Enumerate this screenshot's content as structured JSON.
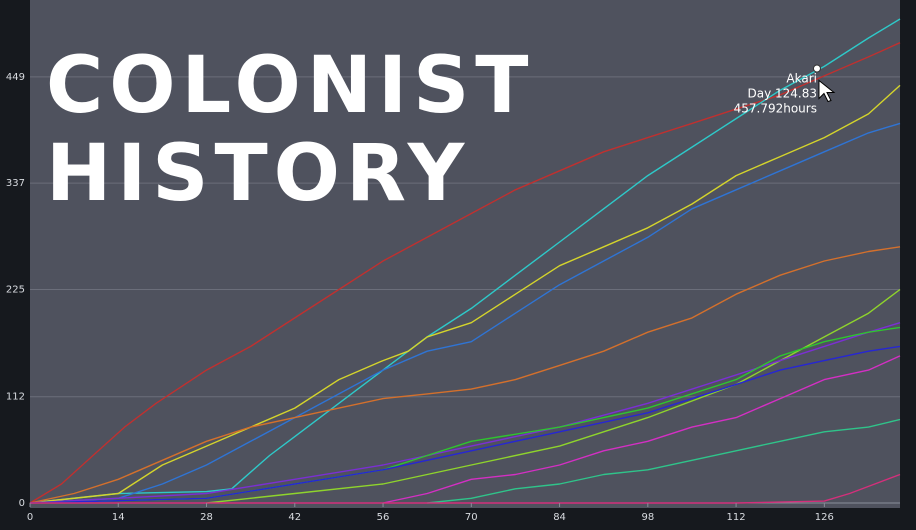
{
  "chart_data": {
    "type": "line",
    "title": [
      "COLONIST",
      "HISTORY"
    ],
    "xlabel": "",
    "ylabel": "",
    "x_ticks": [
      0,
      14,
      28,
      42,
      56,
      70,
      84,
      98,
      112,
      126
    ],
    "y_ticks": [
      0,
      112,
      225,
      337,
      449
    ],
    "xlim": [
      0,
      138
    ],
    "ylim": [
      0,
      530
    ],
    "grid": true,
    "series": [
      {
        "name": "red",
        "color": "#c0302f",
        "points": [
          [
            0,
            0
          ],
          [
            5,
            20
          ],
          [
            10,
            50
          ],
          [
            15,
            80
          ],
          [
            20,
            105
          ],
          [
            28,
            140
          ],
          [
            35,
            165
          ],
          [
            42,
            195
          ],
          [
            49,
            225
          ],
          [
            56,
            255
          ],
          [
            63,
            280
          ],
          [
            70,
            305
          ],
          [
            77,
            330
          ],
          [
            84,
            350
          ],
          [
            91,
            370
          ],
          [
            98,
            385
          ],
          [
            105,
            400
          ],
          [
            112,
            415
          ],
          [
            119,
            430
          ],
          [
            126,
            450
          ],
          [
            133,
            470
          ],
          [
            138,
            485
          ]
        ]
      },
      {
        "name": "cyan",
        "color": "#2ec9c9",
        "points": [
          [
            0,
            0
          ],
          [
            14,
            10
          ],
          [
            28,
            12
          ],
          [
            32,
            15
          ],
          [
            38,
            50
          ],
          [
            42,
            70
          ],
          [
            49,
            105
          ],
          [
            56,
            140
          ],
          [
            63,
            175
          ],
          [
            70,
            205
          ],
          [
            77,
            240
          ],
          [
            84,
            275
          ],
          [
            91,
            310
          ],
          [
            98,
            345
          ],
          [
            105,
            375
          ],
          [
            112,
            405
          ],
          [
            119,
            435
          ],
          [
            126,
            460
          ],
          [
            133,
            490
          ],
          [
            138,
            510
          ]
        ]
      },
      {
        "name": "yellow",
        "color": "#d4d42c",
        "points": [
          [
            0,
            0
          ],
          [
            14,
            10
          ],
          [
            21,
            40
          ],
          [
            28,
            60
          ],
          [
            35,
            80
          ],
          [
            42,
            100
          ],
          [
            49,
            130
          ],
          [
            56,
            150
          ],
          [
            60,
            160
          ],
          [
            63,
            175
          ],
          [
            70,
            190
          ],
          [
            77,
            220
          ],
          [
            84,
            250
          ],
          [
            91,
            270
          ],
          [
            98,
            290
          ],
          [
            105,
            315
          ],
          [
            112,
            345
          ],
          [
            119,
            365
          ],
          [
            126,
            385
          ],
          [
            133,
            410
          ],
          [
            138,
            440
          ]
        ]
      },
      {
        "name": "blue",
        "color": "#2f74d4",
        "points": [
          [
            0,
            0
          ],
          [
            14,
            5
          ],
          [
            21,
            20
          ],
          [
            28,
            40
          ],
          [
            35,
            65
          ],
          [
            42,
            90
          ],
          [
            49,
            115
          ],
          [
            56,
            140
          ],
          [
            63,
            160
          ],
          [
            70,
            170
          ],
          [
            77,
            200
          ],
          [
            84,
            230
          ],
          [
            91,
            255
          ],
          [
            98,
            280
          ],
          [
            105,
            310
          ],
          [
            112,
            330
          ],
          [
            119,
            350
          ],
          [
            126,
            370
          ],
          [
            133,
            390
          ],
          [
            138,
            400
          ]
        ]
      },
      {
        "name": "orange",
        "color": "#d4702c",
        "points": [
          [
            0,
            0
          ],
          [
            7,
            10
          ],
          [
            14,
            25
          ],
          [
            21,
            45
          ],
          [
            28,
            65
          ],
          [
            35,
            80
          ],
          [
            42,
            90
          ],
          [
            49,
            100
          ],
          [
            56,
            110
          ],
          [
            63,
            115
          ],
          [
            70,
            120
          ],
          [
            77,
            130
          ],
          [
            84,
            145
          ],
          [
            91,
            160
          ],
          [
            98,
            180
          ],
          [
            105,
            195
          ],
          [
            112,
            220
          ],
          [
            119,
            240
          ],
          [
            126,
            255
          ],
          [
            133,
            265
          ],
          [
            138,
            270
          ]
        ]
      },
      {
        "name": "lime",
        "color": "#8fd42c",
        "points": [
          [
            28,
            0
          ],
          [
            42,
            10
          ],
          [
            56,
            20
          ],
          [
            70,
            40
          ],
          [
            84,
            60
          ],
          [
            98,
            90
          ],
          [
            112,
            125
          ],
          [
            119,
            150
          ],
          [
            126,
            175
          ],
          [
            133,
            200
          ],
          [
            138,
            225
          ]
        ]
      },
      {
        "name": "violet",
        "color": "#7b2fd4",
        "points": [
          [
            0,
            0
          ],
          [
            28,
            10
          ],
          [
            42,
            25
          ],
          [
            56,
            40
          ],
          [
            70,
            60
          ],
          [
            84,
            80
          ],
          [
            98,
            105
          ],
          [
            112,
            135
          ],
          [
            119,
            150
          ],
          [
            126,
            165
          ],
          [
            133,
            180
          ],
          [
            138,
            190
          ]
        ]
      },
      {
        "name": "green",
        "color": "#2fc42f",
        "points": [
          [
            0,
            0
          ],
          [
            28,
            5
          ],
          [
            42,
            20
          ],
          [
            56,
            35
          ],
          [
            63,
            50
          ],
          [
            70,
            65
          ],
          [
            84,
            80
          ],
          [
            98,
            100
          ],
          [
            112,
            130
          ],
          [
            119,
            155
          ],
          [
            126,
            170
          ],
          [
            133,
            180
          ],
          [
            138,
            185
          ]
        ]
      },
      {
        "name": "navy",
        "color": "#2626d4",
        "points": [
          [
            0,
            0
          ],
          [
            28,
            5
          ],
          [
            42,
            20
          ],
          [
            56,
            35
          ],
          [
            70,
            55
          ],
          [
            84,
            75
          ],
          [
            98,
            95
          ],
          [
            112,
            125
          ],
          [
            119,
            140
          ],
          [
            126,
            150
          ],
          [
            133,
            160
          ],
          [
            138,
            165
          ]
        ]
      },
      {
        "name": "magenta",
        "color": "#d42fc4",
        "points": [
          [
            56,
            0
          ],
          [
            63,
            10
          ],
          [
            70,
            25
          ],
          [
            77,
            30
          ],
          [
            84,
            40
          ],
          [
            91,
            55
          ],
          [
            98,
            65
          ],
          [
            105,
            80
          ],
          [
            112,
            90
          ],
          [
            119,
            110
          ],
          [
            126,
            130
          ],
          [
            133,
            140
          ],
          [
            138,
            155
          ]
        ]
      },
      {
        "name": "teal-green",
        "color": "#2fc48a",
        "points": [
          [
            63,
            0
          ],
          [
            70,
            5
          ],
          [
            77,
            15
          ],
          [
            84,
            20
          ],
          [
            91,
            30
          ],
          [
            98,
            35
          ],
          [
            105,
            45
          ],
          [
            112,
            55
          ],
          [
            119,
            65
          ],
          [
            126,
            75
          ],
          [
            133,
            80
          ],
          [
            138,
            88
          ]
        ]
      },
      {
        "name": "pink",
        "color": "#d42f7b",
        "points": [
          [
            0,
            0
          ],
          [
            14,
            0
          ],
          [
            28,
            0
          ],
          [
            42,
            0
          ],
          [
            56,
            0
          ],
          [
            70,
            0
          ],
          [
            84,
            0
          ],
          [
            98,
            0
          ],
          [
            112,
            0
          ],
          [
            126,
            2
          ],
          [
            130,
            10
          ],
          [
            134,
            20
          ],
          [
            138,
            30
          ]
        ]
      }
    ],
    "tooltip": {
      "name": "Akari",
      "day": "Day 124.83",
      "hours": "457.792hours",
      "x": 124.83,
      "y": 457.792
    }
  },
  "colors": {
    "plot_bg": "#4f525e",
    "frame_bg": "#16191e",
    "grid": "#6b6e7a",
    "tick_text": "#d8dbe0",
    "title": "#ffffff"
  }
}
